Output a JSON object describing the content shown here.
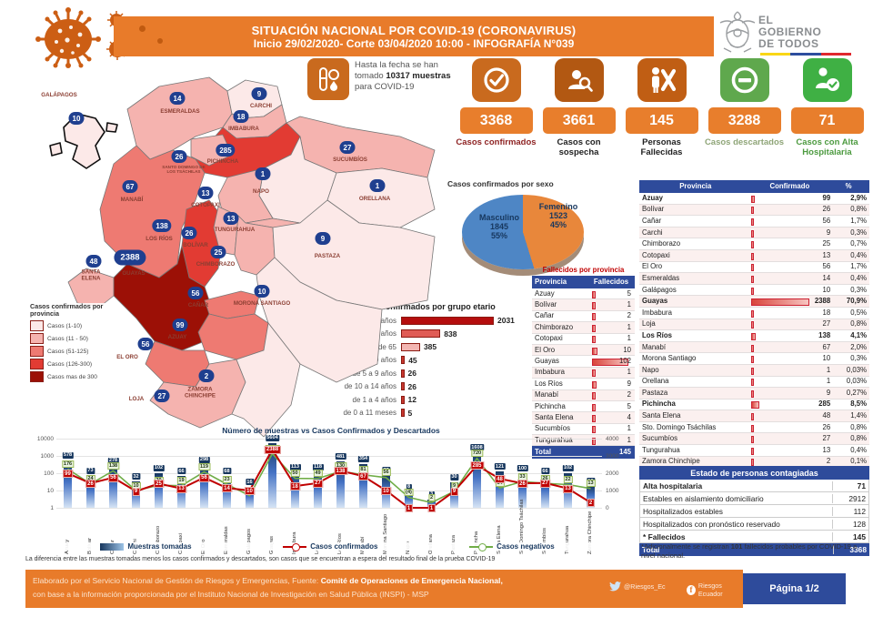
{
  "header": {
    "title": "SITUACIÓN NACIONAL POR  COVID-19 (CORONAVIRUS)",
    "subtitle": "Inicio 29/02/2020- Corte 03/04/2020 10:00  - INFOGRAFÍA N°039",
    "logo": {
      "line1": "EL",
      "line2": "GOBIERNO",
      "line3": "DE TODOS"
    },
    "accent_orange": "#E87B2A"
  },
  "samples_note": {
    "pre": "Hasta la fecha se han tomado ",
    "bold": "10317 muestras",
    "post": " para COVID-19"
  },
  "stats": [
    {
      "value": "3368",
      "label": "Casos confirmados",
      "icon": "check-circle-icon",
      "box_color": "#C96A1E",
      "label_color": "#8E2323"
    },
    {
      "value": "3661",
      "label": "Casos con sospecha",
      "icon": "suspect-case-icon",
      "box_color": "#B25812",
      "label_color": "#222222"
    },
    {
      "value": "145",
      "label": "Personas Fallecidas",
      "icon": "deceased-icon",
      "box_color": "#C05E14",
      "label_color": "#222222"
    },
    {
      "value": "3288",
      "label": "Casos descartados",
      "icon": "minus-circle-icon",
      "box_color": "#5FA84D",
      "label_color": "#8FA578"
    },
    {
      "value": "71",
      "label": "Casos con Alta Hospitalaria",
      "icon": "discharged-icon",
      "box_color": "#3FB044",
      "label_color": "#4C9A3F"
    }
  ],
  "sex_chart": {
    "title": "Casos confirmados por sexo",
    "slices": [
      {
        "label": "Masculino",
        "value": 1845,
        "pct": "55%",
        "color": "#4E86C5"
      },
      {
        "label": "Femenino",
        "value": 1523,
        "pct": "45%",
        "color": "#E8873B"
      }
    ]
  },
  "age_chart": {
    "title": "Casos confirmados por grupo etario",
    "rows": [
      {
        "label": "de 20 a 49 años",
        "value": 2031
      },
      {
        "label": "de 50 a 64 años",
        "value": 838
      },
      {
        "label": "mas de 65",
        "value": 385
      },
      {
        "label": "de 15 a 19 años",
        "value": 45
      },
      {
        "label": "de 5 a 9 años",
        "value": 26
      },
      {
        "label": "de 10 a 14 años",
        "value": 26
      },
      {
        "label": "de 1 a 4 años",
        "value": 12
      },
      {
        "label": "de 0 a 11 meses",
        "value": 5
      }
    ]
  },
  "deaths_table": {
    "title": "Fallecidos por provincia",
    "headers": [
      "Provincia",
      "Fallecidos"
    ],
    "rows": [
      {
        "name": "Azuay",
        "value": 5
      },
      {
        "name": "Bolívar",
        "value": 1
      },
      {
        "name": "Cañar",
        "value": 2
      },
      {
        "name": "Chimborazo",
        "value": 1
      },
      {
        "name": "Cotopaxi",
        "value": 1
      },
      {
        "name": "El Oro",
        "value": 10
      },
      {
        "name": "Guayas",
        "value": 102
      },
      {
        "name": "Imbabura",
        "value": 1
      },
      {
        "name": "Los Ríos",
        "value": 9
      },
      {
        "name": "Manabí",
        "value": 2
      },
      {
        "name": "Pichincha",
        "value": 5
      },
      {
        "name": "Santa Elena",
        "value": 4
      },
      {
        "name": "Sucumbíos",
        "value": 1
      },
      {
        "name": "Tungurahua",
        "value": 1
      }
    ],
    "total_label": "Total",
    "total_value": "145"
  },
  "province_table": {
    "headers": [
      "Provincia",
      "Confirmado",
      "%"
    ],
    "rows": [
      {
        "name": "Azuay",
        "value": 99,
        "pct": "2,9%",
        "bold": true
      },
      {
        "name": "Bolívar",
        "value": 26,
        "pct": "0,8%",
        "bold": false
      },
      {
        "name": "Cañar",
        "value": 56,
        "pct": "1,7%",
        "bold": false
      },
      {
        "name": "Carchi",
        "value": 9,
        "pct": "0,3%",
        "bold": false
      },
      {
        "name": "Chimborazo",
        "value": 25,
        "pct": "0,7%",
        "bold": false
      },
      {
        "name": "Cotopaxi",
        "value": 13,
        "pct": "0,4%",
        "bold": false
      },
      {
        "name": "El Oro",
        "value": 56,
        "pct": "1,7%",
        "bold": false
      },
      {
        "name": "Esmeraldas",
        "value": 14,
        "pct": "0,4%",
        "bold": false
      },
      {
        "name": "Galápagos",
        "value": 10,
        "pct": "0,3%",
        "bold": false
      },
      {
        "name": "Guayas",
        "value": 2388,
        "pct": "70,9%",
        "bold": true
      },
      {
        "name": "Imbabura",
        "value": 18,
        "pct": "0,5%",
        "bold": false
      },
      {
        "name": "Loja",
        "value": 27,
        "pct": "0,8%",
        "bold": false
      },
      {
        "name": "Los Ríos",
        "value": 138,
        "pct": "4,1%",
        "bold": true
      },
      {
        "name": "Manabí",
        "value": 67,
        "pct": "2,0%",
        "bold": false
      },
      {
        "name": "Morona Santiago",
        "value": 10,
        "pct": "0,3%",
        "bold": false
      },
      {
        "name": "Napo",
        "value": 1,
        "pct": "0,03%",
        "bold": false
      },
      {
        "name": "Orellana",
        "value": 1,
        "pct": "0,03%",
        "bold": false
      },
      {
        "name": "Pastaza",
        "value": 9,
        "pct": "0,27%",
        "bold": false
      },
      {
        "name": "Pichincha",
        "value": 285,
        "pct": "8,5%",
        "bold": true
      },
      {
        "name": "Santa Elena",
        "value": 48,
        "pct": "1,4%",
        "bold": false
      },
      {
        "name": "Sto. Domingo Tsáchilas",
        "value": 26,
        "pct": "0,8%",
        "bold": false
      },
      {
        "name": "Sucumbíos",
        "value": 27,
        "pct": "0,8%",
        "bold": false
      },
      {
        "name": "Tungurahua",
        "value": 13,
        "pct": "0,4%",
        "bold": false
      },
      {
        "name": "Zamora Chinchipe",
        "value": 2,
        "pct": "0,1%",
        "bold": false
      }
    ],
    "total_label": "Total general",
    "total_value": "3368"
  },
  "status_table": {
    "title": "Estado de personas contagiadas",
    "rows": [
      {
        "label": "Alta hospitalaria",
        "value": "71",
        "bold": true
      },
      {
        "label": "Estables en aislamiento domiciliario",
        "value": "2912",
        "bold": false
      },
      {
        "label": "Hospitalizados estables",
        "value": "112",
        "bold": false
      },
      {
        "label": "Hospitalizados con pronóstico reservado",
        "value": "128",
        "bold": false
      },
      {
        "label": "* Fallecidos",
        "value": "145",
        "bold": true
      }
    ],
    "total_label": "Total",
    "total_value": "3368",
    "footnote": {
      "pre": "*Adicionalmente se registran ",
      "bold": "101",
      "post": " fallecidos probables por COVID-19 a nivel nacional."
    }
  },
  "map": {
    "legend": {
      "title": "Casos confirmados por provincia",
      "items": [
        {
          "label": "Casos (1-10)",
          "color": "#FCE9E8"
        },
        {
          "label": "Casos (11 - 50)",
          "color": "#F5B3AF"
        },
        {
          "label": "Casos (51-125)",
          "color": "#EE7A72"
        },
        {
          "label": "Casos (126-300)",
          "color": "#E23B33"
        },
        {
          "label": "Casos mas de 300",
          "color": "#9C1006"
        }
      ]
    },
    "provinces": [
      {
        "key": "galapagos",
        "label": "GALÁPAGOS",
        "value": 10
      },
      {
        "key": "esmeraldas",
        "label": "ESMERALDAS",
        "value": 14
      },
      {
        "key": "carchi",
        "label": "CARCHI",
        "value": 9
      },
      {
        "key": "imbabura",
        "label": "IMBABURA",
        "value": 18
      },
      {
        "key": "stodomingo",
        "label": "SANTO DOMINGO DE LOS TSÁCHILAS",
        "value": 26
      },
      {
        "key": "pichincha",
        "label": "PICHINCHA",
        "value": 285
      },
      {
        "key": "sucumbios",
        "label": "SUCUMBÍOS",
        "value": 27
      },
      {
        "key": "napo",
        "label": "NAPO",
        "value": 1
      },
      {
        "key": "orellana",
        "label": "ORELLANA",
        "value": 1
      },
      {
        "key": "manabi",
        "label": "MANABÍ",
        "value": 67
      },
      {
        "key": "cotopaxi",
        "label": "COTOPAXI",
        "value": 13
      },
      {
        "key": "tungurahua",
        "label": "TUNGURAHUA",
        "value": 13
      },
      {
        "key": "bolivar",
        "label": "BOLÍVAR",
        "value": 26
      },
      {
        "key": "losrios",
        "label": "LOS RÍOS",
        "value": 138
      },
      {
        "key": "chimborazo",
        "label": "CHIMBORAZO",
        "value": 25
      },
      {
        "key": "pastaza",
        "label": "PASTAZA",
        "value": 9
      },
      {
        "key": "santaelena",
        "label": "SANTA ELENA",
        "value": 48
      },
      {
        "key": "guayas",
        "label": "GUAYAS",
        "value": 2388
      },
      {
        "key": "canar",
        "label": "CAÑAR",
        "value": 56
      },
      {
        "key": "morona",
        "label": "MORONA SANTIAGO",
        "value": 10
      },
      {
        "key": "azuay",
        "label": "AZUAY",
        "value": 99
      },
      {
        "key": "eloro",
        "label": "EL ORO",
        "value": 56
      },
      {
        "key": "loja",
        "label": "LOJA",
        "value": 27
      },
      {
        "key": "zamora",
        "label": "ZAMORA CHINCHIPE",
        "value": 2
      }
    ]
  },
  "bottom_chart": {
    "title": "Número de muestras vs Casos Confirmados y Descartados",
    "categories": [
      "Azuay",
      "Bolívar",
      "Cañar",
      "Carchi",
      "Chimborazo",
      "Cotopaxi",
      "El Oro",
      "Esmeraldas",
      "Galápagos",
      "Guayas",
      "Imbabura",
      "Loja",
      "Los Ríos",
      "Manabí",
      "Morona Santiago",
      "Napo",
      "Orellana",
      "Pastaza",
      "Pichincha",
      "Santa Elena",
      "Sto. Domingo Tsáchilas",
      "Sucumbíos",
      "Tungurahua",
      "Zamora Chinchipe"
    ],
    "series": [
      {
        "name": "Muestras tomadas",
        "values": [
          578,
          73,
          278,
          32,
          102,
          66,
          298,
          68,
          16,
          5604,
          113,
          118,
          481,
          354,
          77,
          8,
          3,
          30,
          1608,
          121,
          100,
          66,
          102,
          18
        ]
      },
      {
        "name": "Casos confirmados",
        "values": [
          99,
          26,
          56,
          9,
          25,
          13,
          56,
          14,
          10,
          2388,
          18,
          27,
          138,
          67,
          10,
          1,
          1,
          9,
          285,
          48,
          26,
          27,
          13,
          2
        ]
      },
      {
        "name": "Casos negativos",
        "values": [
          176,
          24,
          138,
          10,
          20,
          19,
          119,
          23,
          5,
          1347,
          50,
          49,
          130,
          81,
          56,
          4,
          2,
          9,
          720,
          14,
          33,
          26,
          22,
          13
        ],
        "labels": [
          "176",
          "24",
          "138",
          "10",
          "20",
          "19",
          "119",
          "23",
          "5",
          "1347",
          "50",
          "49",
          "130",
          "81",
          "56",
          "(4)",
          "2",
          "9",
          "720",
          "14",
          "33",
          "26",
          "22",
          "13"
        ]
      }
    ],
    "left_axis": [
      "10000",
      "1000",
      "100",
      "10",
      "1"
    ],
    "right_axis": [
      "4000",
      "3000",
      "2000",
      "1000",
      "0"
    ]
  },
  "notes": {
    "difference": "La diferencia entre las muestras tomadas menos los casos confirmados y descartados, son casos que se encuentran a espera del resultado final de la prueba COVID-19"
  },
  "footer": {
    "line1_pre": "Elaborado por el Servicio Nacional de Gestión de Riesgos y Emergencias, Fuente: ",
    "line1_bold": "Comité de Operaciones de Emergencia Nacional,",
    "line2": "con base a la información proporcionada por el Instituto Nacional de Investigación en Salud Pública (INSPI) - MSP",
    "twitter": "@Riesgos_Ec",
    "facebook": "Riesgos Ecuador",
    "page": "Página 1/2"
  },
  "chart_data": [
    {
      "type": "pie",
      "title": "Casos confirmados por sexo",
      "labels": [
        "Masculino",
        "Femenino"
      ],
      "values": [
        1845,
        1523
      ],
      "percentages": [
        "55%",
        "45%"
      ],
      "colors": [
        "#4E86C5",
        "#E8873B"
      ]
    },
    {
      "type": "bar",
      "title": "Casos confirmados por grupo etario",
      "categories": [
        "de 20 a 49 años",
        "de 50 a 64 años",
        "mas de 65",
        "de 15 a 19 años",
        "de 5 a 9 años",
        "de 10 a 14 años",
        "de 1 a 4 años",
        "de 0 a 11 meses"
      ],
      "values": [
        2031,
        838,
        385,
        45,
        26,
        26,
        12,
        5
      ],
      "orientation": "horizontal"
    },
    {
      "type": "bar",
      "title": "Número de muestras vs Casos Confirmados y Descartados",
      "categories": [
        "Azuay",
        "Bolívar",
        "Cañar",
        "Carchi",
        "Chimborazo",
        "Cotopaxi",
        "El Oro",
        "Esmeraldas",
        "Galápagos",
        "Guayas",
        "Imbabura",
        "Loja",
        "Los Ríos",
        "Manabí",
        "Morona Santiago",
        "Napo",
        "Orellana",
        "Pastaza",
        "Pichincha",
        "Santa Elena",
        "Sto. Domingo Tsáchilas",
        "Sucumbíos",
        "Tungurahua",
        "Zamora Chinchipe"
      ],
      "series": [
        {
          "name": "Muestras tomadas",
          "type": "bar",
          "values": [
            578,
            73,
            278,
            32,
            102,
            66,
            298,
            68,
            16,
            5604,
            113,
            118,
            481,
            354,
            77,
            8,
            3,
            30,
            1608,
            121,
            100,
            66,
            102,
            18
          ]
        },
        {
          "name": "Casos confirmados",
          "type": "line",
          "values": [
            99,
            26,
            56,
            9,
            25,
            13,
            56,
            14,
            10,
            2388,
            18,
            27,
            138,
            67,
            10,
            1,
            1,
            9,
            285,
            48,
            26,
            27,
            13,
            2
          ]
        },
        {
          "name": "Casos negativos",
          "type": "line",
          "values": [
            176,
            24,
            138,
            10,
            20,
            19,
            119,
            23,
            5,
            1347,
            50,
            49,
            130,
            81,
            56,
            4,
            2,
            9,
            720,
            14,
            33,
            26,
            22,
            13
          ]
        }
      ],
      "y_axis_left": {
        "scale": "log",
        "ticks": [
          10000,
          1000,
          100,
          10,
          1
        ]
      },
      "y_axis_right": {
        "scale": "linear",
        "ticks": [
          4000,
          3000,
          2000,
          1000,
          0
        ]
      },
      "legend_position": "bottom"
    }
  ]
}
